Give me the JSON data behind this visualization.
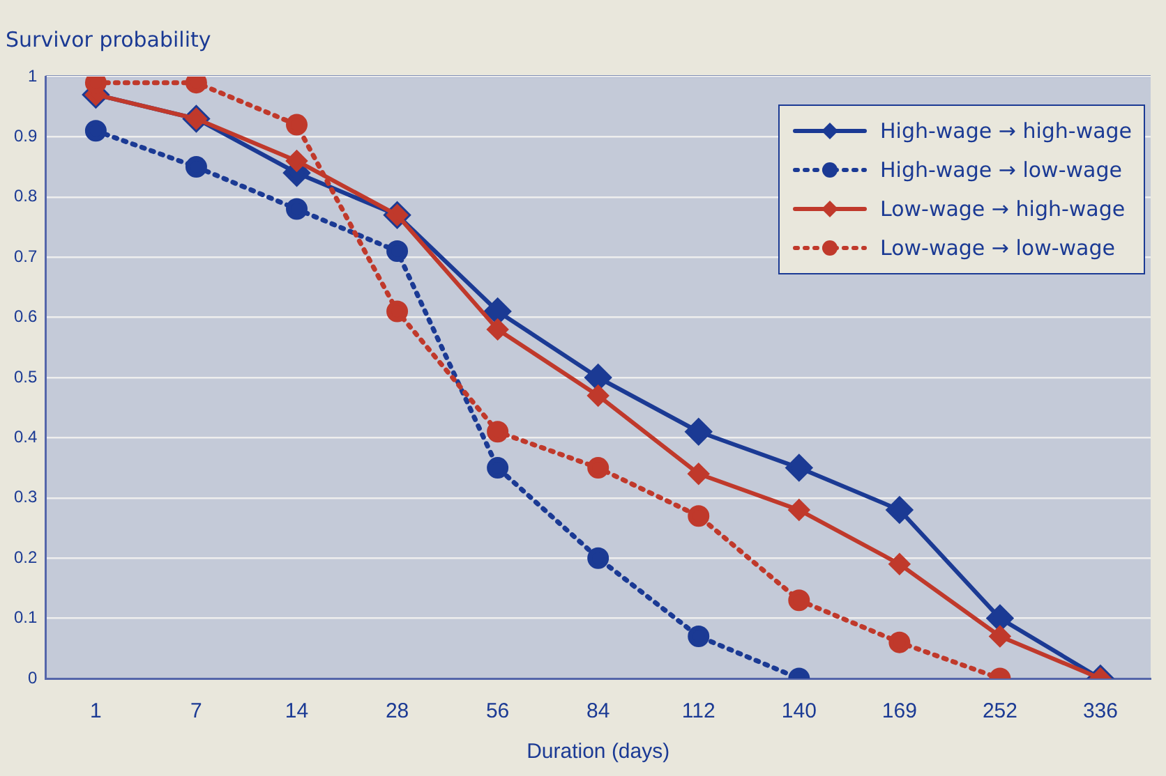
{
  "chart_data": {
    "type": "line",
    "ylabel": "Survivor probability",
    "xlabel": "Duration (days)",
    "categories": [
      "1",
      "7",
      "14",
      "28",
      "56",
      "84",
      "112",
      "140",
      "169",
      "252",
      "336"
    ],
    "ylim": [
      0,
      1
    ],
    "yticks": [
      0,
      0.1,
      0.2,
      0.3,
      0.4,
      0.5,
      0.6,
      0.7,
      0.8,
      0.9,
      1
    ],
    "grid": "y",
    "legend": "top right",
    "series": [
      {
        "name": "High-wage → high-wage",
        "color": "#1b3a94",
        "marker": "diamond",
        "line_style": "solid",
        "values": [
          0.97,
          0.93,
          0.84,
          0.77,
          0.61,
          0.5,
          0.41,
          0.35,
          0.28,
          0.1,
          0
        ]
      },
      {
        "name": "High-wage → low-wage",
        "color": "#1b3a94",
        "marker": "circle",
        "line_style": "dotted",
        "values": [
          0.91,
          0.85,
          0.78,
          0.71,
          0.35,
          0.2,
          0.07,
          0,
          null,
          null,
          null
        ]
      },
      {
        "name": "Low-wage → high-wage",
        "color": "#c0392b",
        "marker": "diamond",
        "line_style": "solid",
        "values": [
          0.97,
          0.93,
          0.86,
          0.77,
          0.58,
          0.47,
          0.34,
          0.28,
          0.19,
          0.07,
          0
        ]
      },
      {
        "name": "Low-wage → low-wage",
        "color": "#c0392b",
        "marker": "circle",
        "line_style": "dotted",
        "values": [
          0.99,
          0.99,
          0.92,
          0.61,
          0.41,
          0.35,
          0.27,
          0.13,
          0.06,
          0,
          null
        ]
      }
    ]
  }
}
